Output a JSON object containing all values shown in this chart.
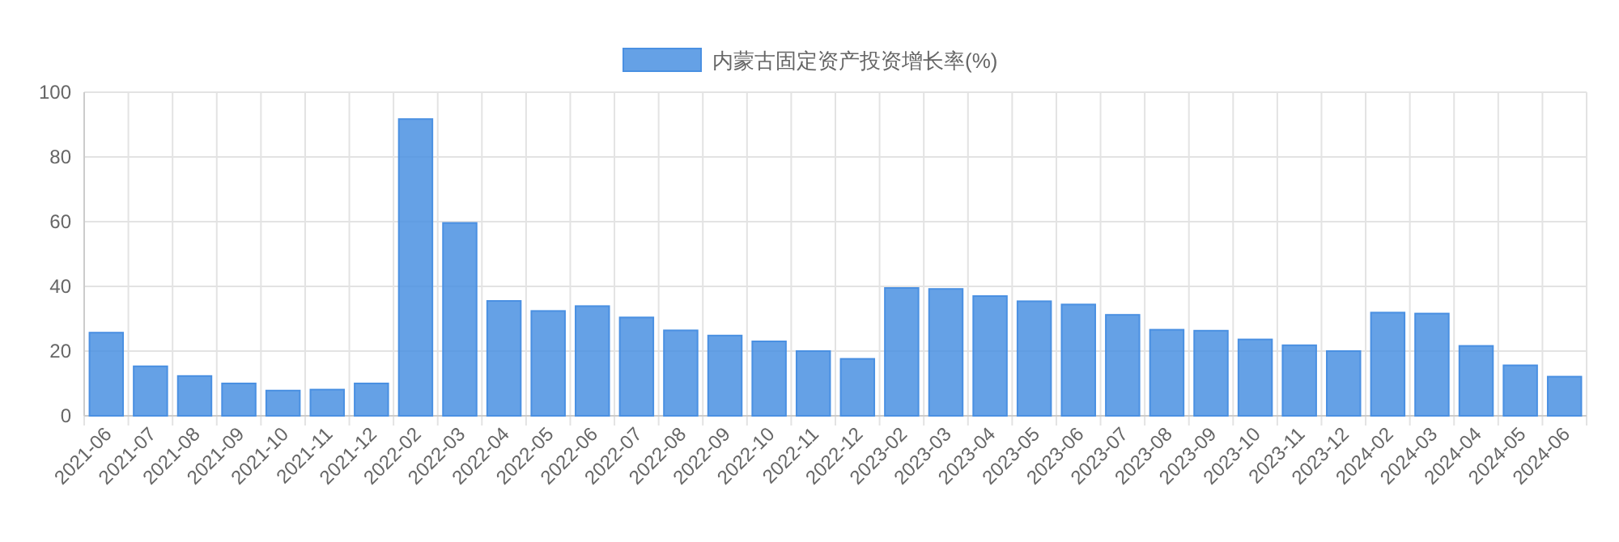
{
  "chart_data": {
    "type": "bar",
    "categories": [
      "2021-06",
      "2021-07",
      "2021-08",
      "2021-09",
      "2021-10",
      "2021-11",
      "2021-12",
      "2022-02",
      "2022-03",
      "2022-04",
      "2022-05",
      "2022-06",
      "2022-07",
      "2022-08",
      "2022-09",
      "2022-10",
      "2022-11",
      "2022-12",
      "2023-02",
      "2023-03",
      "2023-04",
      "2023-05",
      "2023-06",
      "2023-07",
      "2023-08",
      "2023-09",
      "2023-10",
      "2023-11",
      "2023-12",
      "2024-02",
      "2024-03",
      "2024-04",
      "2024-05",
      "2024-06"
    ],
    "series": [
      {
        "name": "内蒙古固定资产投资增长率(%)",
        "color": "#4a90e2",
        "values": [
          25.7,
          15.3,
          12.3,
          10.0,
          7.8,
          8.1,
          10.0,
          91.7,
          59.6,
          35.5,
          32.4,
          33.9,
          30.4,
          26.4,
          24.8,
          23.0,
          20.0,
          17.6,
          39.5,
          39.2,
          37.0,
          35.4,
          34.4,
          31.2,
          26.6,
          26.3,
          23.6,
          21.8,
          20.0,
          31.9,
          31.6,
          21.6,
          15.6,
          12.1
        ]
      }
    ],
    "ylim": [
      0,
      100
    ],
    "yticks": [
      0,
      20,
      40,
      60,
      80,
      100
    ],
    "grid": true,
    "legend": "top"
  }
}
